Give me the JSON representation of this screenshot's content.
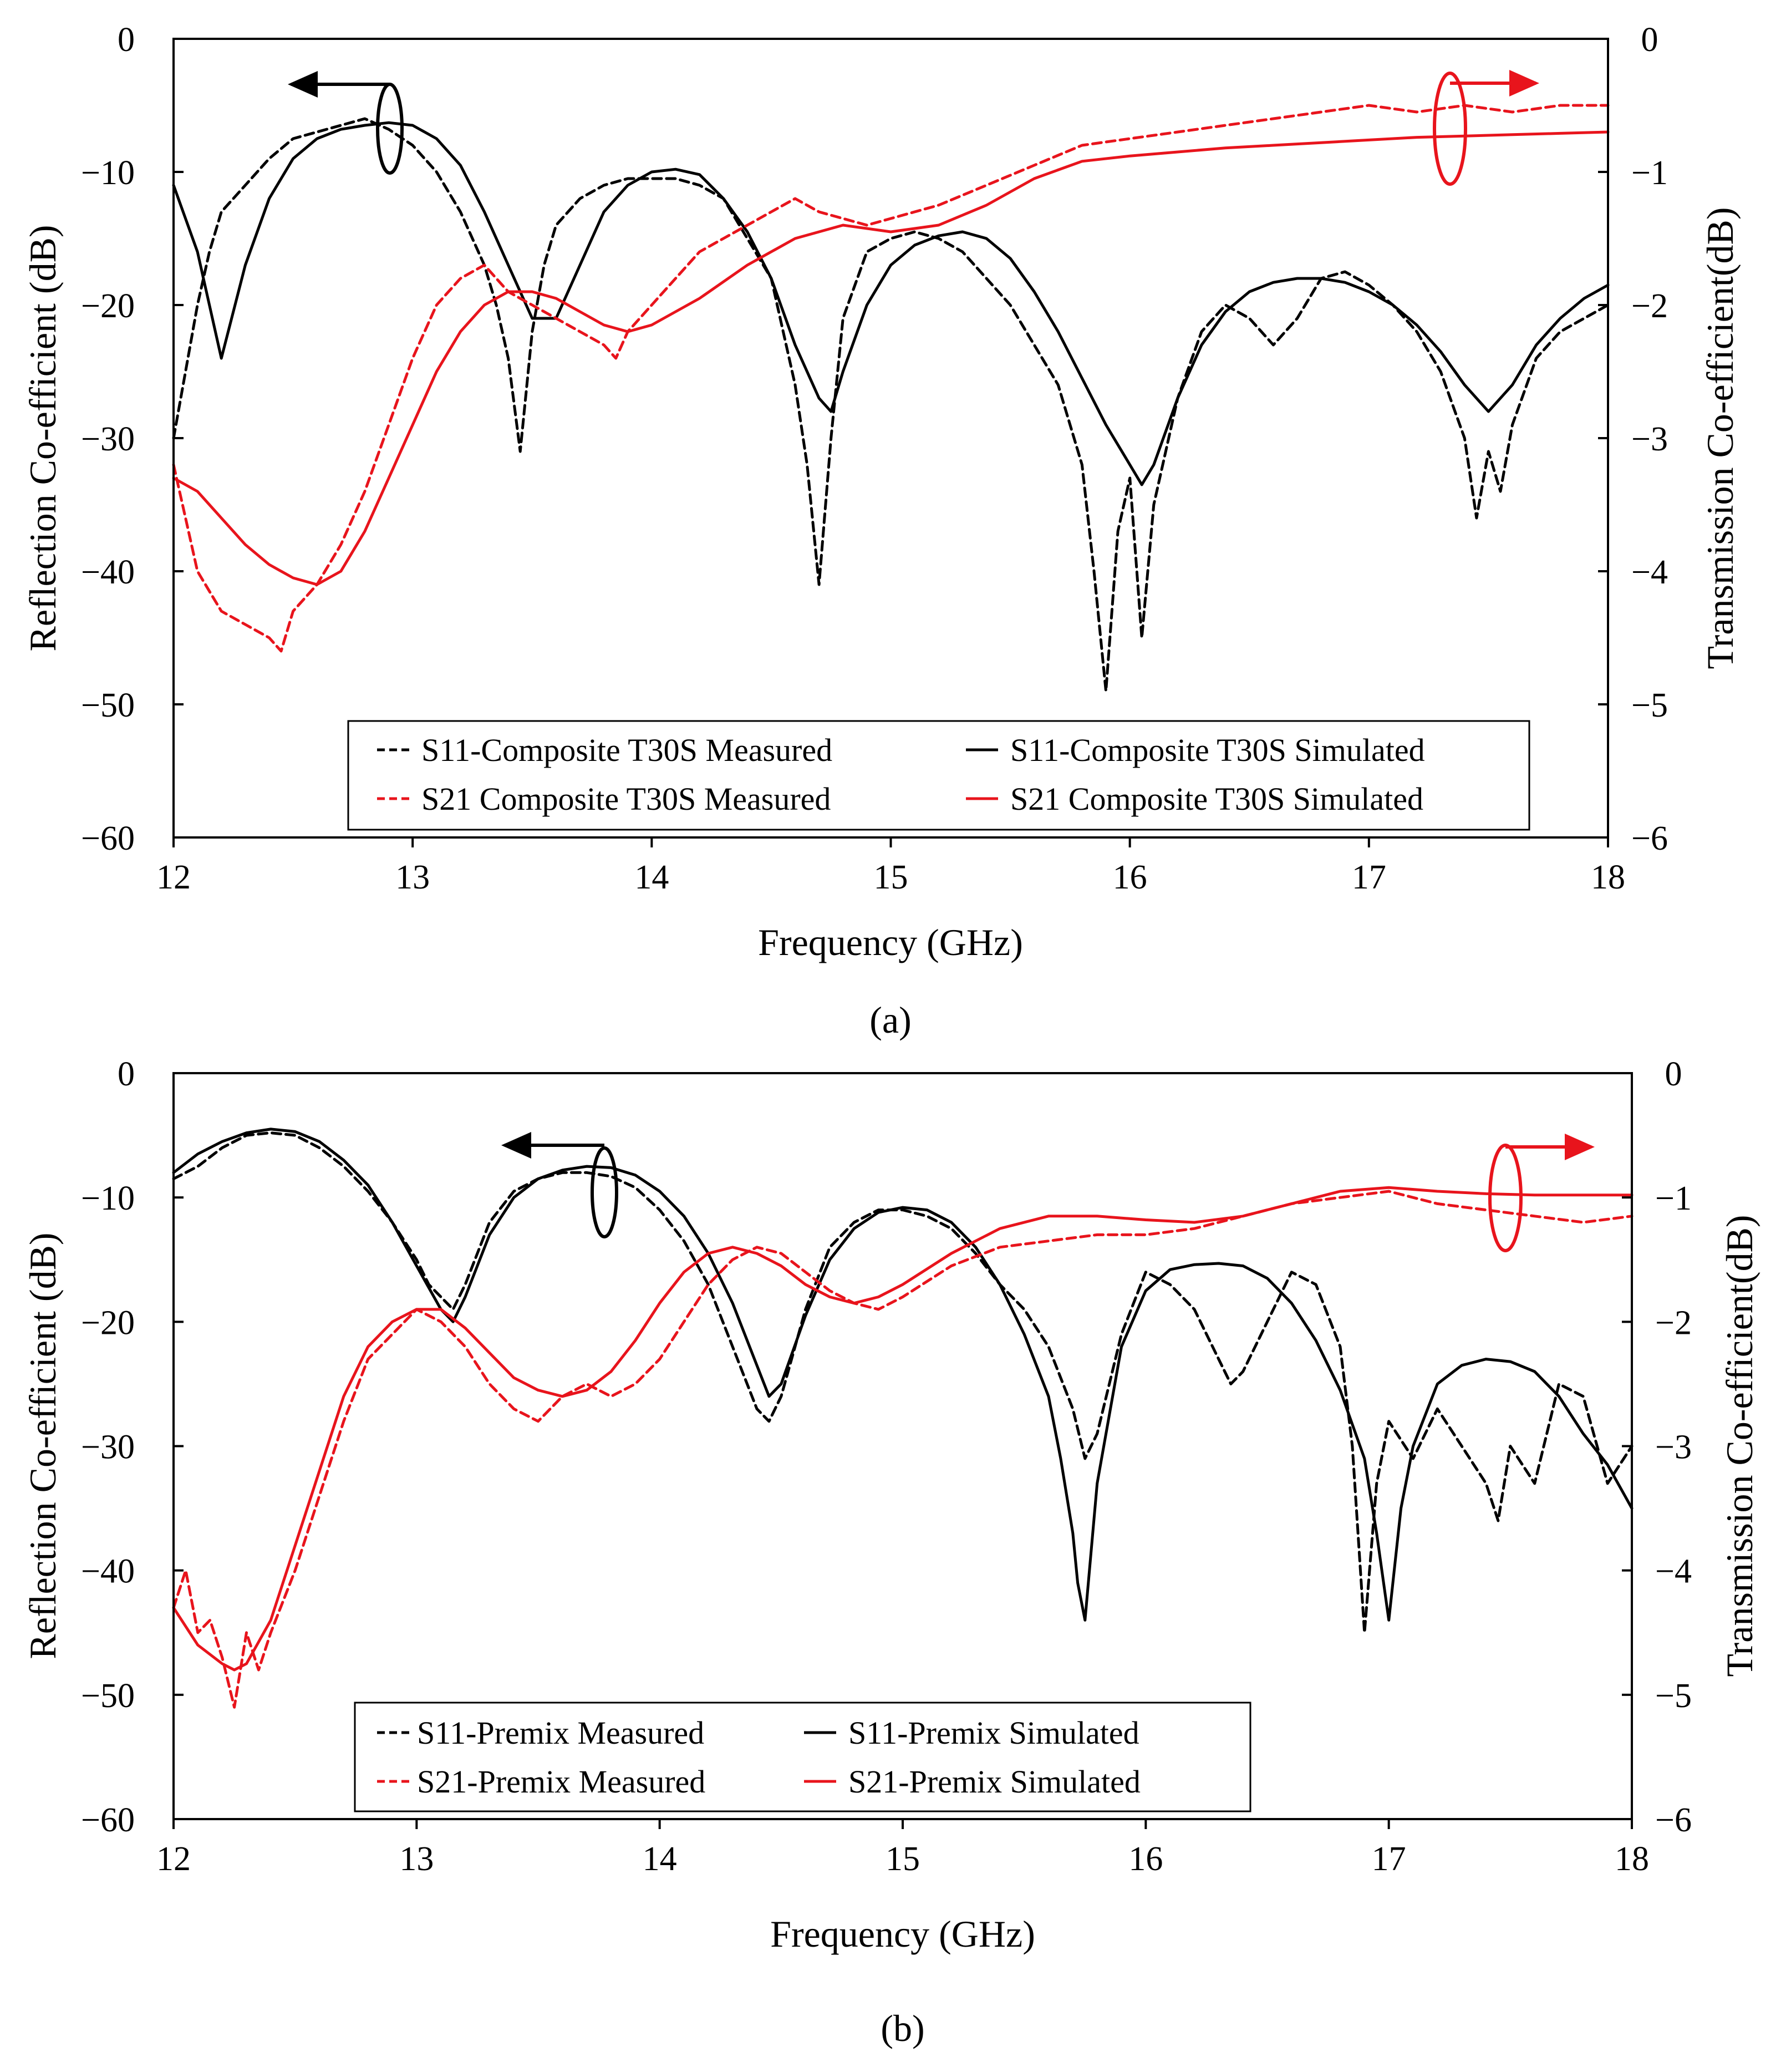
{
  "colors": {
    "s11": "#000000",
    "s21": "#e8141c"
  },
  "chart_data": [
    {
      "type": "line",
      "panel_label": "(a)",
      "xlabel": "Frequency (GHz)",
      "ylabel": "Reflection Co-efficient (dB)",
      "y2label": "Transmission Co-efficient(dB)",
      "xlim": [
        12,
        18
      ],
      "ylim": [
        -60,
        0
      ],
      "y2lim": [
        -6,
        0
      ],
      "xticks": [
        "12",
        "13",
        "14",
        "15",
        "16",
        "17",
        "18"
      ],
      "yticks": [
        "0",
        "−10",
        "−20",
        "−30",
        "−40",
        "−50",
        "−60"
      ],
      "y2ticks": [
        "0",
        "−1",
        "−2",
        "−3",
        "−4",
        "−5",
        "−6"
      ],
      "legend_location": "lower-center",
      "series": [
        {
          "name": "S11-Composite T30S Measured",
          "axis": "left",
          "style": "dashed",
          "color": "#000000",
          "x": [
            12.0,
            12.05,
            12.1,
            12.15,
            12.2,
            12.3,
            12.4,
            12.5,
            12.6,
            12.7,
            12.8,
            12.9,
            13.0,
            13.1,
            13.2,
            13.3,
            13.35,
            13.4,
            13.45,
            13.5,
            13.55,
            13.6,
            13.7,
            13.8,
            13.9,
            14.0,
            14.1,
            14.2,
            14.3,
            14.4,
            14.5,
            14.6,
            14.65,
            14.7,
            14.75,
            14.8,
            14.9,
            15.0,
            15.1,
            15.2,
            15.3,
            15.4,
            15.5,
            15.6,
            15.7,
            15.8,
            15.85,
            15.9,
            15.95,
            16.0,
            16.05,
            16.1,
            16.2,
            16.3,
            16.4,
            16.5,
            16.6,
            16.7,
            16.8,
            16.9,
            17.0,
            17.1,
            17.2,
            17.3,
            17.4,
            17.45,
            17.5,
            17.55,
            17.6,
            17.7,
            17.8,
            17.9,
            18.0
          ],
          "y": [
            -30,
            -25,
            -20,
            -16,
            -13,
            -11,
            -9,
            -7.5,
            -7,
            -6.5,
            -6,
            -6.8,
            -8,
            -10,
            -13,
            -17,
            -20,
            -24,
            -31,
            -22,
            -17,
            -14,
            -12,
            -11,
            -10.5,
            -10.5,
            -10.5,
            -11,
            -12,
            -15,
            -18,
            -26,
            -32,
            -41,
            -30,
            -21,
            -16,
            -15,
            -14.5,
            -15,
            -16,
            -18,
            -20,
            -23,
            -26,
            -32,
            -40,
            -49,
            -37,
            -33,
            -45,
            -35,
            -27,
            -22,
            -20,
            -21,
            -23,
            -21,
            -18,
            -17.5,
            -18.5,
            -20,
            -22,
            -25,
            -30,
            -36,
            -31,
            -34,
            -29,
            -24,
            -22,
            -21,
            -20
          ]
        },
        {
          "name": "S11-Composite T30S Simulated",
          "axis": "left",
          "style": "solid",
          "color": "#000000",
          "x": [
            12.0,
            12.1,
            12.2,
            12.3,
            12.4,
            12.5,
            12.6,
            12.7,
            12.8,
            12.9,
            13.0,
            13.1,
            13.2,
            13.3,
            13.4,
            13.5,
            13.6,
            13.7,
            13.8,
            13.9,
            14.0,
            14.1,
            14.2,
            14.3,
            14.4,
            14.5,
            14.6,
            14.7,
            14.75,
            14.8,
            14.9,
            15.0,
            15.1,
            15.2,
            15.3,
            15.4,
            15.5,
            15.6,
            15.7,
            15.8,
            15.9,
            16.0,
            16.05,
            16.1,
            16.2,
            16.3,
            16.4,
            16.5,
            16.6,
            16.7,
            16.8,
            16.9,
            17.0,
            17.1,
            17.2,
            17.3,
            17.4,
            17.5,
            17.6,
            17.7,
            17.8,
            17.9,
            18.0
          ],
          "y": [
            -11,
            -16,
            -24,
            -17,
            -12,
            -9,
            -7.5,
            -6.8,
            -6.5,
            -6.3,
            -6.5,
            -7.5,
            -9.5,
            -13,
            -17,
            -21,
            -21,
            -17,
            -13,
            -11,
            -10,
            -9.8,
            -10.2,
            -12,
            -14.5,
            -18,
            -23,
            -27,
            -28,
            -25,
            -20,
            -17,
            -15.5,
            -14.8,
            -14.5,
            -15,
            -16.5,
            -19,
            -22,
            -25.5,
            -29,
            -32,
            -33.5,
            -32,
            -27,
            -23,
            -20.5,
            -19,
            -18.3,
            -18,
            -18,
            -18.3,
            -19,
            -20,
            -21.5,
            -23.5,
            -26,
            -28,
            -26,
            -23,
            -21,
            -19.5,
            -18.5
          ]
        },
        {
          "name": "S21 Composite T30S Measured",
          "axis": "right",
          "style": "dashed",
          "color": "#e8141c",
          "x": [
            12.0,
            12.05,
            12.1,
            12.2,
            12.3,
            12.4,
            12.45,
            12.5,
            12.6,
            12.7,
            12.8,
            12.9,
            13.0,
            13.1,
            13.2,
            13.3,
            13.4,
            13.5,
            13.6,
            13.7,
            13.8,
            13.85,
            13.9,
            14.0,
            14.1,
            14.2,
            14.3,
            14.4,
            14.5,
            14.6,
            14.7,
            14.8,
            14.9,
            15.0,
            15.2,
            15.4,
            15.6,
            15.8,
            16.0,
            16.2,
            16.4,
            16.6,
            16.8,
            17.0,
            17.2,
            17.4,
            17.6,
            17.8,
            18.0
          ],
          "y": [
            -3.2,
            -3.6,
            -4.0,
            -4.3,
            -4.4,
            -4.5,
            -4.6,
            -4.3,
            -4.1,
            -3.8,
            -3.4,
            -2.9,
            -2.4,
            -2.0,
            -1.8,
            -1.7,
            -1.9,
            -2.0,
            -2.1,
            -2.2,
            -2.3,
            -2.4,
            -2.2,
            -2.0,
            -1.8,
            -1.6,
            -1.5,
            -1.4,
            -1.3,
            -1.2,
            -1.3,
            -1.35,
            -1.4,
            -1.35,
            -1.25,
            -1.1,
            -0.95,
            -0.8,
            -0.75,
            -0.7,
            -0.65,
            -0.6,
            -0.55,
            -0.5,
            -0.55,
            -0.5,
            -0.55,
            -0.5,
            -0.5
          ]
        },
        {
          "name": "S21 Composite T30S Simulated",
          "axis": "right",
          "style": "solid",
          "color": "#e8141c",
          "x": [
            12.0,
            12.1,
            12.2,
            12.3,
            12.4,
            12.5,
            12.6,
            12.7,
            12.8,
            12.9,
            13.0,
            13.1,
            13.2,
            13.3,
            13.4,
            13.5,
            13.6,
            13.7,
            13.8,
            13.9,
            14.0,
            14.2,
            14.4,
            14.6,
            14.8,
            15.0,
            15.2,
            15.4,
            15.6,
            15.8,
            16.0,
            16.2,
            16.4,
            16.6,
            16.8,
            17.0,
            17.2,
            17.4,
            17.6,
            17.8,
            18.0
          ],
          "y": [
            -3.3,
            -3.4,
            -3.6,
            -3.8,
            -3.95,
            -4.05,
            -4.1,
            -4.0,
            -3.7,
            -3.3,
            -2.9,
            -2.5,
            -2.2,
            -2.0,
            -1.9,
            -1.9,
            -1.95,
            -2.05,
            -2.15,
            -2.2,
            -2.15,
            -1.95,
            -1.7,
            -1.5,
            -1.4,
            -1.45,
            -1.4,
            -1.25,
            -1.05,
            -0.92,
            -0.88,
            -0.85,
            -0.82,
            -0.8,
            -0.78,
            -0.76,
            -0.74,
            -0.73,
            -0.72,
            -0.71,
            -0.7
          ]
        }
      ]
    },
    {
      "type": "line",
      "panel_label": "(b)",
      "xlabel": "Frequency (GHz)",
      "ylabel": "Reflection Co-efficient (dB)",
      "y2label": "Transmission Co-efficient(dB)",
      "xlim": [
        12,
        18
      ],
      "ylim": [
        -60,
        0
      ],
      "y2lim": [
        -6,
        0
      ],
      "xticks": [
        "12",
        "13",
        "14",
        "15",
        "16",
        "17",
        "18"
      ],
      "yticks": [
        "0",
        "−10",
        "−20",
        "−30",
        "−40",
        "−50",
        "−60"
      ],
      "y2ticks": [
        "0",
        "−1",
        "−2",
        "−3",
        "−4",
        "−5",
        "−6"
      ],
      "legend_location": "lower-left",
      "series": [
        {
          "name": "S11-Premix Measured",
          "axis": "left",
          "style": "dashed",
          "color": "#000000",
          "x": [
            12.0,
            12.1,
            12.2,
            12.3,
            12.4,
            12.5,
            12.6,
            12.7,
            12.8,
            12.9,
            13.0,
            13.05,
            13.1,
            13.15,
            13.2,
            13.3,
            13.4,
            13.5,
            13.6,
            13.7,
            13.8,
            13.9,
            14.0,
            14.1,
            14.2,
            14.3,
            14.4,
            14.45,
            14.5,
            14.6,
            14.7,
            14.8,
            14.9,
            15.0,
            15.1,
            15.2,
            15.3,
            15.4,
            15.5,
            15.6,
            15.7,
            15.75,
            15.8,
            15.9,
            16.0,
            16.1,
            16.2,
            16.3,
            16.35,
            16.4,
            16.5,
            16.6,
            16.7,
            16.8,
            16.85,
            16.9,
            16.95,
            17.0,
            17.1,
            17.2,
            17.3,
            17.4,
            17.45,
            17.5,
            17.6,
            17.7,
            17.8,
            17.9,
            18.0
          ],
          "y": [
            -8.5,
            -7.5,
            -6,
            -5,
            -4.8,
            -5,
            -6,
            -7.5,
            -9.5,
            -12,
            -15,
            -17,
            -18,
            -19,
            -17,
            -12,
            -9.5,
            -8.5,
            -8,
            -8,
            -8.3,
            -9.2,
            -11,
            -13.5,
            -17,
            -22,
            -27,
            -28,
            -26,
            -19,
            -14,
            -12,
            -11,
            -11,
            -11.5,
            -12.5,
            -14.5,
            -17,
            -19,
            -22,
            -27,
            -31,
            -29,
            -21,
            -16,
            -17,
            -19,
            -23,
            -25,
            -24,
            -20,
            -16,
            -17,
            -22,
            -30,
            -45,
            -33,
            -28,
            -31,
            -27,
            -30,
            -33,
            -36,
            -30,
            -33,
            -25,
            -26,
            -33,
            -30
          ]
        },
        {
          "name": "S11-Premix Simulated",
          "axis": "left",
          "style": "solid",
          "color": "#000000",
          "x": [
            12.0,
            12.1,
            12.2,
            12.3,
            12.4,
            12.5,
            12.6,
            12.7,
            12.8,
            12.9,
            13.0,
            13.1,
            13.15,
            13.2,
            13.3,
            13.4,
            13.5,
            13.6,
            13.7,
            13.8,
            13.9,
            14.0,
            14.1,
            14.2,
            14.3,
            14.4,
            14.45,
            14.5,
            14.6,
            14.7,
            14.8,
            14.9,
            15.0,
            15.1,
            15.2,
            15.3,
            15.4,
            15.5,
            15.6,
            15.65,
            15.7,
            15.72,
            15.75,
            15.8,
            15.9,
            16.0,
            16.1,
            16.2,
            16.3,
            16.4,
            16.5,
            16.6,
            16.7,
            16.8,
            16.9,
            16.95,
            17.0,
            17.05,
            17.1,
            17.2,
            17.3,
            17.4,
            17.5,
            17.6,
            17.7,
            17.8,
            17.9,
            18.0
          ],
          "y": [
            -8,
            -6.5,
            -5.5,
            -4.8,
            -4.5,
            -4.7,
            -5.5,
            -7,
            -9,
            -12,
            -15.5,
            -19,
            -20,
            -18,
            -13,
            -10,
            -8.5,
            -7.8,
            -7.5,
            -7.6,
            -8.2,
            -9.5,
            -11.5,
            -14.5,
            -18.5,
            -23.5,
            -26,
            -25,
            -19.5,
            -15,
            -12.5,
            -11.2,
            -10.8,
            -11,
            -12,
            -14,
            -17,
            -21,
            -26,
            -31,
            -37,
            -41,
            -44,
            -33,
            -22,
            -17.5,
            -15.8,
            -15.4,
            -15.3,
            -15.5,
            -16.5,
            -18.5,
            -21.5,
            -25.5,
            -31,
            -37,
            -44,
            -35,
            -30,
            -25,
            -23.5,
            -23,
            -23.2,
            -24,
            -26,
            -29,
            -31.5,
            -35
          ]
        },
        {
          "name": "S21-Premix Measured",
          "axis": "right",
          "style": "dashed",
          "color": "#e8141c",
          "x": [
            12.0,
            12.05,
            12.1,
            12.15,
            12.2,
            12.25,
            12.3,
            12.35,
            12.4,
            12.5,
            12.6,
            12.7,
            12.8,
            12.9,
            13.0,
            13.1,
            13.2,
            13.3,
            13.4,
            13.5,
            13.6,
            13.7,
            13.8,
            13.9,
            14.0,
            14.1,
            14.2,
            14.3,
            14.4,
            14.5,
            14.6,
            14.7,
            14.8,
            14.9,
            15.0,
            15.2,
            15.4,
            15.6,
            15.8,
            16.0,
            16.2,
            16.4,
            16.6,
            16.8,
            17.0,
            17.2,
            17.4,
            17.6,
            17.8,
            18.0
          ],
          "y": [
            -4.3,
            -4.0,
            -4.5,
            -4.4,
            -4.7,
            -5.1,
            -4.5,
            -4.8,
            -4.5,
            -4.0,
            -3.4,
            -2.8,
            -2.3,
            -2.1,
            -1.9,
            -2.0,
            -2.2,
            -2.5,
            -2.7,
            -2.8,
            -2.6,
            -2.5,
            -2.6,
            -2.5,
            -2.3,
            -2.0,
            -1.7,
            -1.5,
            -1.4,
            -1.45,
            -1.6,
            -1.75,
            -1.85,
            -1.9,
            -1.8,
            -1.55,
            -1.4,
            -1.35,
            -1.3,
            -1.3,
            -1.25,
            -1.15,
            -1.05,
            -1.0,
            -0.95,
            -1.05,
            -1.1,
            -1.15,
            -1.2,
            -1.15
          ]
        },
        {
          "name": "S21-Premix Simulated",
          "axis": "right",
          "style": "solid",
          "color": "#e8141c",
          "x": [
            12.0,
            12.1,
            12.2,
            12.25,
            12.3,
            12.4,
            12.5,
            12.6,
            12.7,
            12.8,
            12.9,
            13.0,
            13.1,
            13.2,
            13.3,
            13.4,
            13.5,
            13.6,
            13.7,
            13.8,
            13.9,
            14.0,
            14.1,
            14.2,
            14.3,
            14.4,
            14.5,
            14.6,
            14.7,
            14.8,
            14.9,
            15.0,
            15.2,
            15.4,
            15.6,
            15.8,
            16.0,
            16.2,
            16.4,
            16.6,
            16.8,
            17.0,
            17.2,
            17.4,
            17.6,
            17.8,
            18.0
          ],
          "y": [
            -4.3,
            -4.6,
            -4.75,
            -4.8,
            -4.75,
            -4.4,
            -3.8,
            -3.2,
            -2.6,
            -2.2,
            -2.0,
            -1.9,
            -1.9,
            -2.05,
            -2.25,
            -2.45,
            -2.55,
            -2.6,
            -2.55,
            -2.4,
            -2.15,
            -1.85,
            -1.6,
            -1.45,
            -1.4,
            -1.45,
            -1.55,
            -1.7,
            -1.8,
            -1.85,
            -1.8,
            -1.7,
            -1.45,
            -1.25,
            -1.15,
            -1.15,
            -1.18,
            -1.2,
            -1.15,
            -1.05,
            -0.95,
            -0.92,
            -0.95,
            -0.97,
            -0.98,
            -0.98,
            -0.98
          ]
        }
      ]
    }
  ]
}
